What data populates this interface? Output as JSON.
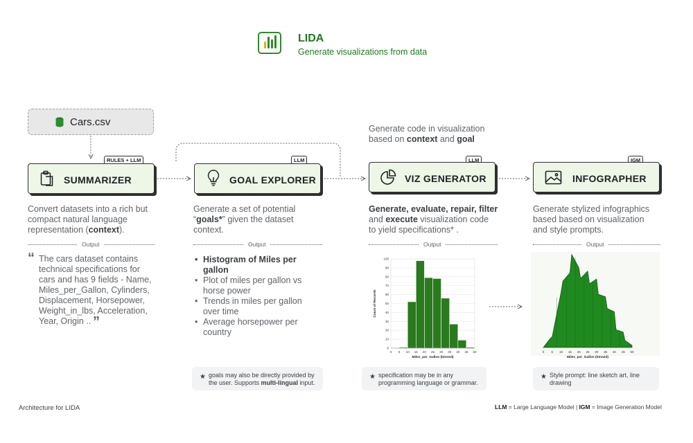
{
  "header": {
    "app_name": "LIDA",
    "subtitle": "Generate visualizations from data",
    "logo_bar_heights": [
      0.45,
      0.75,
      0.6,
      0.9
    ],
    "brand_color": "#2e8b2e"
  },
  "source": {
    "label": "Cars.csv",
    "icon": "database-icon"
  },
  "viz_annotation": {
    "line1": "Generate code in visualization",
    "line2_prefix": "based on ",
    "line2_b1": "context",
    "line2_mid": " and ",
    "line2_b2": "goal"
  },
  "output_label": "Output",
  "stages": {
    "summarizer": {
      "title": "SUMMARIZER",
      "tag": "RULES + LLM",
      "icon": "clipboard-icon",
      "desc_line1": "Convert datasets into a rich but",
      "desc_line2": "compact natural language",
      "desc_line3_prefix": "representation (",
      "desc_line3_bold": "context",
      "desc_line3_suffix": ").",
      "output_text": "The cars dataset contains technical specifications for cars and has 9 fields - Name, Miles_per_Gallon, Cylinders, Displacement, Horsepower, Weight_in_lbs, Acceleration, Year, Origin ..",
      "open_quote": "“",
      "close_quote": "”"
    },
    "goal_explorer": {
      "title": "GOAL EXPLORER",
      "tag": "LLM",
      "icon": "lightbulb-icon",
      "desc_line1": "Generate a set of potential",
      "desc_line2_prefix": "“",
      "desc_line2_bold": "goals*",
      "desc_line2_suffix": "” given the dataset",
      "desc_line3": "context.",
      "goals": [
        "Histogram of Miles per gallon",
        "Plot of miles per gallon vs horse power",
        "Trends in miles per gallon over time",
        "Average horsepower per country"
      ],
      "note_line1": "goals may also be directly provided by",
      "note_line2_prefix": "the user. Supports ",
      "note_line2_bold": "multi-lingual",
      "note_line2_suffix": " input."
    },
    "viz_generator": {
      "title": "VIZ GENERATOR",
      "tag": "LLM",
      "icon": "pie-chart-icon",
      "desc_b1": "Generate, evaluate, repair, filter",
      "desc_line2_prefix": "and ",
      "desc_line2_bold": "execute",
      "desc_line2_suffix": " visualization code",
      "desc_line3": "to yield specifications* .",
      "note_line1": "specification may be in any",
      "note_line2": "programming language or grammar."
    },
    "infographer": {
      "title": "INFOGRAPHER",
      "tag": "IGM",
      "icon": "image-icon",
      "desc_line1": "Generate stylized infographics",
      "desc_line2": "based based on visualization",
      "desc_line3": "and style prompts.",
      "note_line1": "Style prompt: line sketch art, line",
      "note_line2": "drawing"
    }
  },
  "chart_data": [
    {
      "type": "bar",
      "subtype": "histogram",
      "xlabel": "Miles_per_Gallon (binned)",
      "ylabel": "Count of Records",
      "bin_edges": [
        5,
        10,
        15,
        20,
        25,
        30,
        35,
        40,
        45,
        50
      ],
      "values": [
        1,
        52,
        98,
        79,
        78,
        56,
        27,
        9,
        1
      ],
      "xticks": [
        0,
        5,
        10,
        15,
        20,
        25,
        30,
        35,
        40,
        45,
        50
      ],
      "yticks": [
        0,
        10,
        20,
        30,
        40,
        50,
        60,
        70,
        80,
        90,
        100
      ],
      "xlim": [
        0,
        50
      ],
      "ylim": [
        0,
        100
      ],
      "bar_color": "#2a7a1e"
    },
    {
      "type": "area",
      "style": "stylized skyline infographic",
      "xlabel": "Miles_per_Gallon (binned)",
      "xticks": [
        0,
        5,
        10,
        15,
        20,
        25,
        30,
        35,
        40,
        45,
        50
      ],
      "xlim": [
        0,
        50
      ],
      "x": [
        0,
        4,
        5,
        10,
        11,
        15,
        16,
        20,
        21,
        25,
        26,
        30,
        31,
        35,
        36,
        40,
        41,
        45,
        46,
        50
      ],
      "y": [
        0,
        8,
        12,
        60,
        75,
        82,
        105,
        88,
        78,
        84,
        72,
        75,
        60,
        55,
        44,
        38,
        20,
        15,
        8,
        0
      ],
      "color": "#1f8a1f"
    }
  ],
  "footer": {
    "caption": "Architecture for LIDA",
    "legend_b1": "LLM",
    "legend_t1": " = Large Language Model | ",
    "legend_b2": "IGM",
    "legend_t2": " = Image Generation Model"
  }
}
